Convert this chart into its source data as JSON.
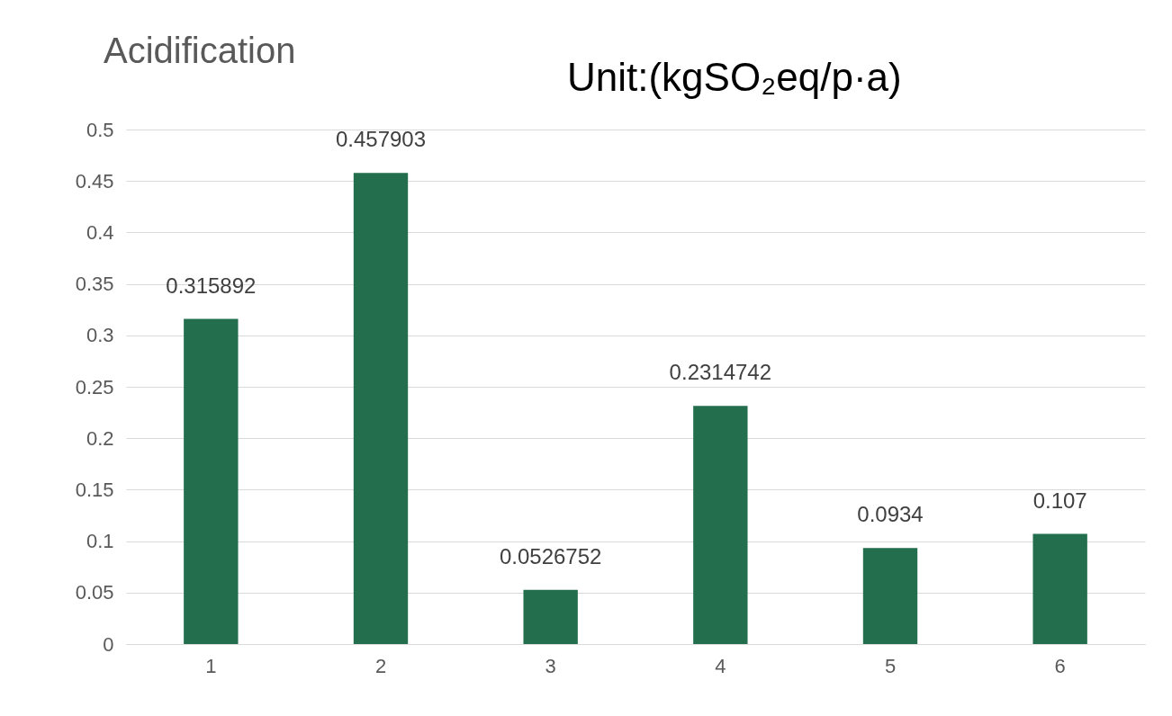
{
  "chart_data": {
    "type": "bar",
    "title": "Acidification",
    "annotations": [
      "Unit:(kgSO₂eq/p·a)"
    ],
    "categories": [
      "1",
      "2",
      "3",
      "4",
      "5",
      "6"
    ],
    "values": [
      0.315892,
      0.457903,
      0.0526752,
      0.2314742,
      0.0934,
      0.107
    ],
    "color": "#236e4d",
    "data_labels": true,
    "ylim": [
      0,
      0.5
    ],
    "yticks": [
      0,
      0.05,
      0.1,
      0.15,
      0.2,
      0.25,
      0.3,
      0.35,
      0.4,
      0.45,
      0.5
    ],
    "grid": "y"
  }
}
